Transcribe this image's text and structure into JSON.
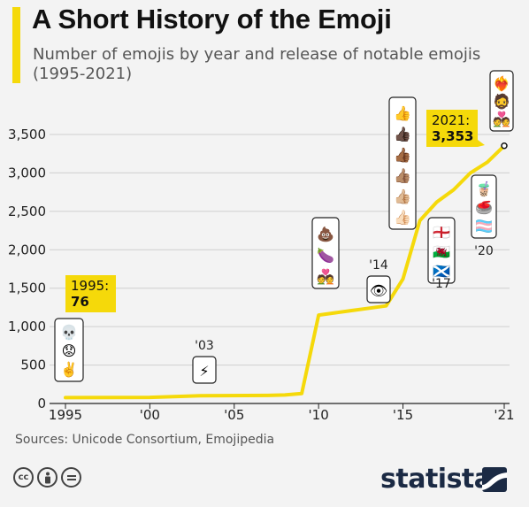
{
  "header": {
    "title": "A Short History of the Emoji",
    "subtitle": "Number of emojis by year and release of notable emojis (1995-2021)"
  },
  "colors": {
    "accent": "#f5d90a",
    "line": "#f5d90a",
    "grid": "#cfcfcf",
    "brand": "#1b2a44",
    "annotation_fill": "#f5d90a"
  },
  "chart_data": {
    "type": "line",
    "title": "A Short History of the Emoji",
    "subtitle": "Number of emojis by year and release of notable emojis (1995-2021)",
    "xlabel": "",
    "ylabel": "",
    "xlim": [
      1995,
      2021
    ],
    "ylim": [
      0,
      3500
    ],
    "x_ticks": [
      1995,
      2000,
      2005,
      2010,
      2015,
      2021
    ],
    "x_tick_labels": [
      "1995",
      "'00",
      "'05",
      "'10",
      "'15",
      "'21"
    ],
    "y_ticks": [
      0,
      500,
      1000,
      1500,
      2000,
      2500,
      3000,
      3500
    ],
    "y_tick_labels": [
      "0",
      "500",
      "1,000",
      "1,500",
      "2,000",
      "2,500",
      "3,000",
      "3,500"
    ],
    "grid": true,
    "series": [
      {
        "x": [
          1995,
          2000,
          2003,
          2007,
          2008,
          2009,
          2010,
          2011,
          2012,
          2013,
          2014,
          2015,
          2016,
          2017,
          2018,
          2019,
          2020,
          2021
        ],
        "y": [
          76,
          80,
          100,
          105,
          110,
          130,
          1150,
          1180,
          1210,
          1240,
          1270,
          1620,
          2380,
          2620,
          2780,
          3000,
          3140,
          3353
        ]
      }
    ],
    "annotations": [
      {
        "label": "1995:",
        "value": "76",
        "x": 1995,
        "y": 76,
        "style": "highlight"
      },
      {
        "label": "2021:",
        "value": "3,353",
        "x": 2021,
        "y": 3353,
        "style": "highlight"
      }
    ],
    "emoji_callouts": [
      {
        "year_label": "",
        "x": 1995.5,
        "icons": [
          "💀",
          "😟",
          "✌️"
        ]
      },
      {
        "year_label": "'03",
        "x": 2003,
        "icons": [
          "⚡"
        ]
      },
      {
        "year_label": "",
        "x": 2010,
        "icons": [
          "💩",
          "🍆",
          "💑"
        ]
      },
      {
        "year_label": "'14",
        "x": 2013.6,
        "icons": [
          "👁"
        ]
      },
      {
        "year_label": "",
        "x": 2015,
        "icons": [
          "👍",
          "👍🏿",
          "👍🏾",
          "👍🏽",
          "👍🏼",
          "👍🏻"
        ]
      },
      {
        "year_label": "'17",
        "x": 2017.2,
        "icons": [
          "🏴󠁧󠁢󠁥󠁮󠁧󠁿",
          "🏴󠁧󠁢󠁷󠁬󠁳󠁿",
          "🏴󠁧󠁢󠁳󠁣󠁴󠁿"
        ]
      },
      {
        "year_label": "'20",
        "x": 2019.9,
        "icons": [
          "🧋",
          "🥌",
          "🏳️‍⚧️"
        ]
      },
      {
        "year_label": "",
        "x": 2020.9,
        "icons": [
          "❤️‍🔥",
          "🧔",
          "💑"
        ]
      }
    ]
  },
  "footer": {
    "source": "Sources: Unicode Consortium, Emojipedia",
    "license_icons": [
      "creative-commons-icon",
      "attribution-icon",
      "no-derivatives-icon"
    ],
    "brand": "statista"
  }
}
